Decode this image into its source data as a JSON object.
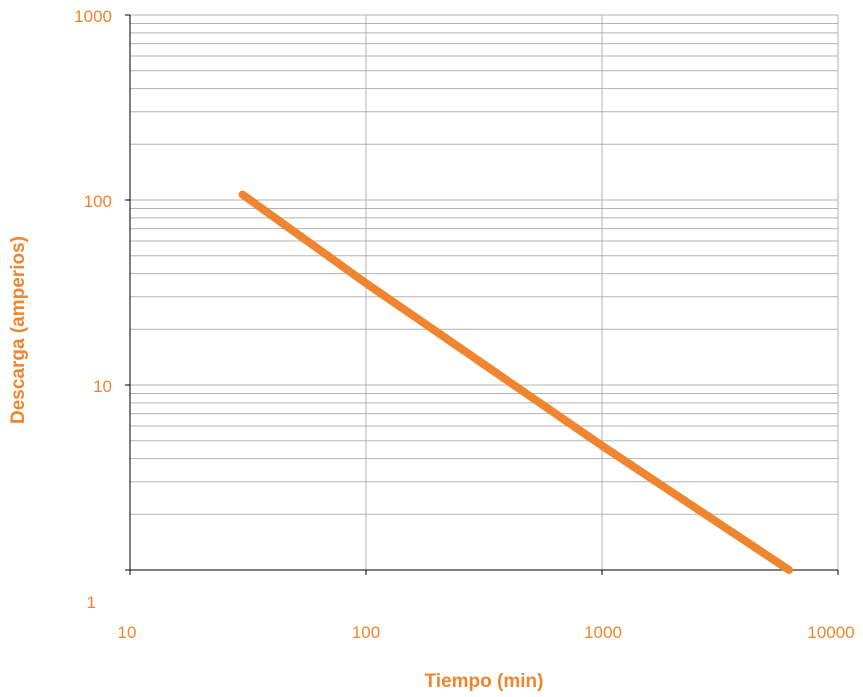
{
  "chart_data": {
    "type": "line",
    "xlabel": "Tiempo (min)",
    "ylabel": "Descarga (amperios)",
    "x_scale": "log",
    "y_scale": "log",
    "xlim": [
      10,
      10000
    ],
    "ylim": [
      1,
      1000
    ],
    "x_ticks": [
      "10",
      "100",
      "1000",
      "10000"
    ],
    "y_ticks": [
      "1",
      "10",
      "100",
      "1000"
    ],
    "grid": true,
    "colors": {
      "line": "#f0852f",
      "text": "#f0852f",
      "grid": "#b3b3b3",
      "axis": "#000000"
    },
    "series": [
      {
        "x": [
          30,
          100,
          1000,
          6200
        ],
        "y": [
          107,
          35.5,
          4.7,
          1
        ]
      }
    ]
  }
}
